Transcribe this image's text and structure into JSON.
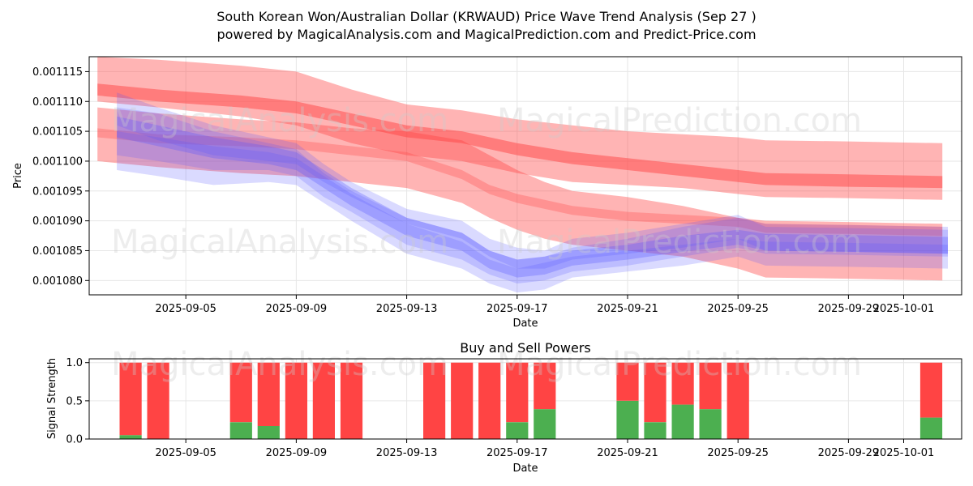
{
  "title_line1": "South Korean Won/Australian Dollar (KRWAUD) Price Wave Trend Analysis (Sep 27 )",
  "title_line2": "powered by MagicalAnalysis.com and MagicalPrediction.com and Predict-Price.com",
  "watermark_1": "MagicalAnalysis.com",
  "watermark_2": "MagicalPrediction.com",
  "colors": {
    "red": "#ff4444",
    "blue": "#5555ff",
    "green": "#4caf50",
    "grid": "#e6e6e6"
  },
  "chart_data": [
    {
      "type": "area",
      "title": "",
      "xlabel": "Date",
      "ylabel": "Price",
      "ylim": [
        0.0010776,
        0.0011175
      ],
      "x_days_range": [
        -3.5,
        28.1
      ],
      "x_origin_date": "2025-09-05",
      "x_ticks": [
        {
          "day": 0,
          "label": "2025-09-05"
        },
        {
          "day": 4,
          "label": "2025-09-09"
        },
        {
          "day": 8,
          "label": "2025-09-13"
        },
        {
          "day": 12,
          "label": "2025-09-17"
        },
        {
          "day": 16,
          "label": "2025-09-21"
        },
        {
          "day": 20,
          "label": "2025-09-25"
        },
        {
          "day": 24,
          "label": "2025-09-29"
        },
        {
          "day": 26,
          "label": "2025-10-01"
        }
      ],
      "y_ticks": [
        {
          "value": 0.00108,
          "label": "0.001080"
        },
        {
          "value": 0.001085,
          "label": "0.001085"
        },
        {
          "value": 0.00109,
          "label": "0.001090"
        },
        {
          "value": 0.001095,
          "label": "0.001095"
        },
        {
          "value": 0.0011,
          "label": "0.001100"
        },
        {
          "value": 0.001105,
          "label": "0.001105"
        },
        {
          "value": 0.00111,
          "label": "0.001110"
        },
        {
          "value": 0.001115,
          "label": "0.001115"
        }
      ],
      "red_bands": [
        {
          "x": [
            -3.2,
            -1,
            2,
            4,
            6,
            8,
            10,
            12,
            14,
            16,
            18,
            20,
            21,
            24,
            27.4
          ],
          "upper": [
            0.0011175,
            0.001117,
            0.001116,
            0.001115,
            0.001112,
            0.0011095,
            0.0011085,
            0.001107,
            0.001106,
            0.001105,
            0.0011045,
            0.001104,
            0.0011035,
            0.0011033,
            0.001103
          ],
          "lower": [
            0.00111,
            0.001109,
            0.0011075,
            0.001106,
            0.001103,
            0.001101,
            0.0011,
            0.001098,
            0.0010965,
            0.001096,
            0.0010955,
            0.0010945,
            0.001094,
            0.0010938,
            0.0010935
          ],
          "opacity": 0.4
        },
        {
          "x": [
            -3.2,
            -1,
            2,
            4,
            6,
            8,
            10,
            12,
            14,
            16,
            18,
            20,
            21,
            24,
            27.4
          ],
          "upper": [
            0.001113,
            0.001112,
            0.001111,
            0.00111,
            0.001108,
            0.001106,
            0.001105,
            0.001103,
            0.0011015,
            0.0011005,
            0.0010995,
            0.0010985,
            0.001098,
            0.0010978,
            0.0010975
          ],
          "lower": [
            0.001111,
            0.00111,
            0.001109,
            0.001108,
            0.001106,
            0.001104,
            0.001103,
            0.001101,
            0.0010995,
            0.0010985,
            0.0010975,
            0.0010965,
            0.001096,
            0.0010957,
            0.0010955
          ],
          "opacity": 0.5
        },
        {
          "x": [
            -3.2,
            -1,
            2,
            4,
            6,
            8,
            10,
            11,
            12,
            13,
            14,
            16,
            18,
            20,
            21,
            24,
            27.4
          ],
          "upper": [
            0.001109,
            0.001108,
            0.001107,
            0.0011065,
            0.0011055,
            0.001105,
            0.0011035,
            0.001101,
            0.0010985,
            0.0010965,
            0.001095,
            0.001094,
            0.0010925,
            0.0010905,
            0.00109,
            0.0010898,
            0.0010895
          ],
          "lower": [
            0.0011,
            0.001099,
            0.001098,
            0.0010975,
            0.0010965,
            0.0010955,
            0.001093,
            0.0010905,
            0.0010885,
            0.001087,
            0.001086,
            0.001085,
            0.001084,
            0.001082,
            0.0010805,
            0.0010803,
            0.00108
          ],
          "opacity": 0.4
        },
        {
          "x": [
            -3.2,
            -1,
            2,
            4,
            6,
            8,
            10,
            11,
            12,
            13,
            14,
            16,
            18,
            20,
            21,
            24,
            27.4
          ],
          "upper": [
            0.0011055,
            0.0011045,
            0.001104,
            0.0011035,
            0.0011025,
            0.0011015,
            0.0010985,
            0.001096,
            0.0010945,
            0.0010935,
            0.0010925,
            0.0010915,
            0.001091,
            0.0010905,
            0.0010895,
            0.0010893,
            0.001089
          ],
          "lower": [
            0.001104,
            0.001103,
            0.0011025,
            0.001102,
            0.001101,
            0.0011,
            0.001097,
            0.0010945,
            0.001093,
            0.001092,
            0.001091,
            0.00109,
            0.0010895,
            0.001089,
            0.001088,
            0.0010878,
            0.0010875
          ],
          "opacity": 0.3
        }
      ],
      "blue_bands": [
        {
          "x": [
            -2.5,
            -1,
            1,
            3,
            4,
            5,
            6,
            8,
            10,
            11,
            12,
            13,
            14,
            16,
            18,
            20,
            21,
            24,
            27.6
          ],
          "upper": [
            0.001109,
            0.001108,
            0.001105,
            0.001103,
            0.001102,
            0.001098,
            0.001095,
            0.0010905,
            0.001088,
            0.001085,
            0.0010835,
            0.001084,
            0.0010855,
            0.001087,
            0.001089,
            0.0010905,
            0.0010895,
            0.0010893,
            0.001089
          ],
          "lower": [
            0.001101,
            0.0011,
            0.0010985,
            0.0010985,
            0.0010975,
            0.001094,
            0.0010915,
            0.001086,
            0.0010835,
            0.001081,
            0.0010795,
            0.00108,
            0.0010815,
            0.0010825,
            0.001084,
            0.0010855,
            0.0010845,
            0.0010843,
            0.001084
          ],
          "opacity": 0.22
        },
        {
          "x": [
            -2.5,
            -1,
            1,
            3,
            4,
            5,
            6,
            8,
            10,
            11,
            12,
            13,
            14,
            16,
            18,
            20,
            21,
            24,
            27.6
          ],
          "upper": [
            0.0011115,
            0.001109,
            0.001106,
            0.001104,
            0.001103,
            0.0010995,
            0.0010965,
            0.001092,
            0.00109,
            0.001087,
            0.0010855,
            0.001085,
            0.001087,
            0.001088,
            0.0010895,
            0.001091,
            0.001089,
            0.0010888,
            0.0010885
          ],
          "lower": [
            0.001106,
            0.0011035,
            0.001101,
            0.0011,
            0.0010995,
            0.0010965,
            0.001094,
            0.0010895,
            0.001087,
            0.001084,
            0.001082,
            0.001082,
            0.0010835,
            0.0010845,
            0.0010855,
            0.001087,
            0.001085,
            0.0010848,
            0.0010845
          ],
          "opacity": 0.22
        },
        {
          "x": [
            -2.5,
            -1,
            1,
            3,
            4,
            5,
            6,
            8,
            10,
            11,
            12,
            13,
            14,
            16,
            18,
            20,
            21,
            24,
            27.6
          ],
          "upper": [
            0.001105,
            0.001104,
            0.0011025,
            0.0011015,
            0.0011005,
            0.0010975,
            0.0010945,
            0.0010895,
            0.0010865,
            0.0010835,
            0.001082,
            0.001083,
            0.001084,
            0.001085,
            0.001086,
            0.001087,
            0.0010865,
            0.0010863,
            0.001086
          ],
          "lower": [
            0.0010985,
            0.0010975,
            0.001096,
            0.0010965,
            0.001096,
            0.001093,
            0.00109,
            0.0010845,
            0.001082,
            0.0010795,
            0.001078,
            0.0010785,
            0.0010805,
            0.0010815,
            0.0010825,
            0.001084,
            0.0010825,
            0.0010823,
            0.001082
          ],
          "opacity": 0.22
        },
        {
          "x": [
            -2.5,
            -1,
            1,
            3,
            4,
            5,
            6,
            8,
            10,
            11,
            12,
            13,
            14,
            16,
            18,
            20,
            21,
            24,
            27.6
          ],
          "upper": [
            0.0011075,
            0.001106,
            0.001104,
            0.0011025,
            0.0011015,
            0.0010985,
            0.0010955,
            0.0010905,
            0.001088,
            0.001085,
            0.0010835,
            0.001084,
            0.001085,
            0.001086,
            0.0010875,
            0.0010885,
            0.0010878,
            0.0010876,
            0.0010873
          ],
          "lower": [
            0.001104,
            0.0011025,
            0.0011005,
            0.0010995,
            0.0010985,
            0.0010955,
            0.0010925,
            0.0010875,
            0.001085,
            0.001082,
            0.0010805,
            0.001081,
            0.0010825,
            0.0010835,
            0.0010848,
            0.001086,
            0.001085,
            0.0010848,
            0.0010845
          ],
          "opacity": 0.3
        }
      ]
    },
    {
      "type": "bar",
      "title": "Buy and Sell Powers",
      "xlabel": "Date",
      "ylabel": "Signal Strength",
      "ylim": [
        0,
        1.05
      ],
      "x_days_range": [
        -3.5,
        28.1
      ],
      "y_ticks": [
        {
          "value": 0,
          "label": "0.0"
        },
        {
          "value": 0.5,
          "label": "0.5"
        },
        {
          "value": 1.0,
          "label": "1.0"
        }
      ],
      "x_ticks": [
        {
          "day": 0,
          "label": "2025-09-05"
        },
        {
          "day": 4,
          "label": "2025-09-09"
        },
        {
          "day": 8,
          "label": "2025-09-13"
        },
        {
          "day": 12,
          "label": "2025-09-17"
        },
        {
          "day": 16,
          "label": "2025-09-21"
        },
        {
          "day": 20,
          "label": "2025-09-25"
        },
        {
          "day": 24,
          "label": "2025-09-29"
        },
        {
          "day": 26,
          "label": "2025-10-01"
        }
      ],
      "bars": [
        {
          "day": -2,
          "buy": 0.05
        },
        {
          "day": -1,
          "buy": 0.0
        },
        {
          "day": 2,
          "buy": 0.22
        },
        {
          "day": 3,
          "buy": 0.17
        },
        {
          "day": 4,
          "buy": 0.0
        },
        {
          "day": 5,
          "buy": 0.0
        },
        {
          "day": 6,
          "buy": 0.0
        },
        {
          "day": 9,
          "buy": 0.0
        },
        {
          "day": 10,
          "buy": 0.0
        },
        {
          "day": 11,
          "buy": 0.0
        },
        {
          "day": 12,
          "buy": 0.22
        },
        {
          "day": 13,
          "buy": 0.39
        },
        {
          "day": 16,
          "buy": 0.5
        },
        {
          "day": 17,
          "buy": 0.22
        },
        {
          "day": 18,
          "buy": 0.45
        },
        {
          "day": 19,
          "buy": 0.39
        },
        {
          "day": 20,
          "buy": 0.0
        },
        {
          "day": 27,
          "buy": 0.28
        }
      ]
    }
  ]
}
